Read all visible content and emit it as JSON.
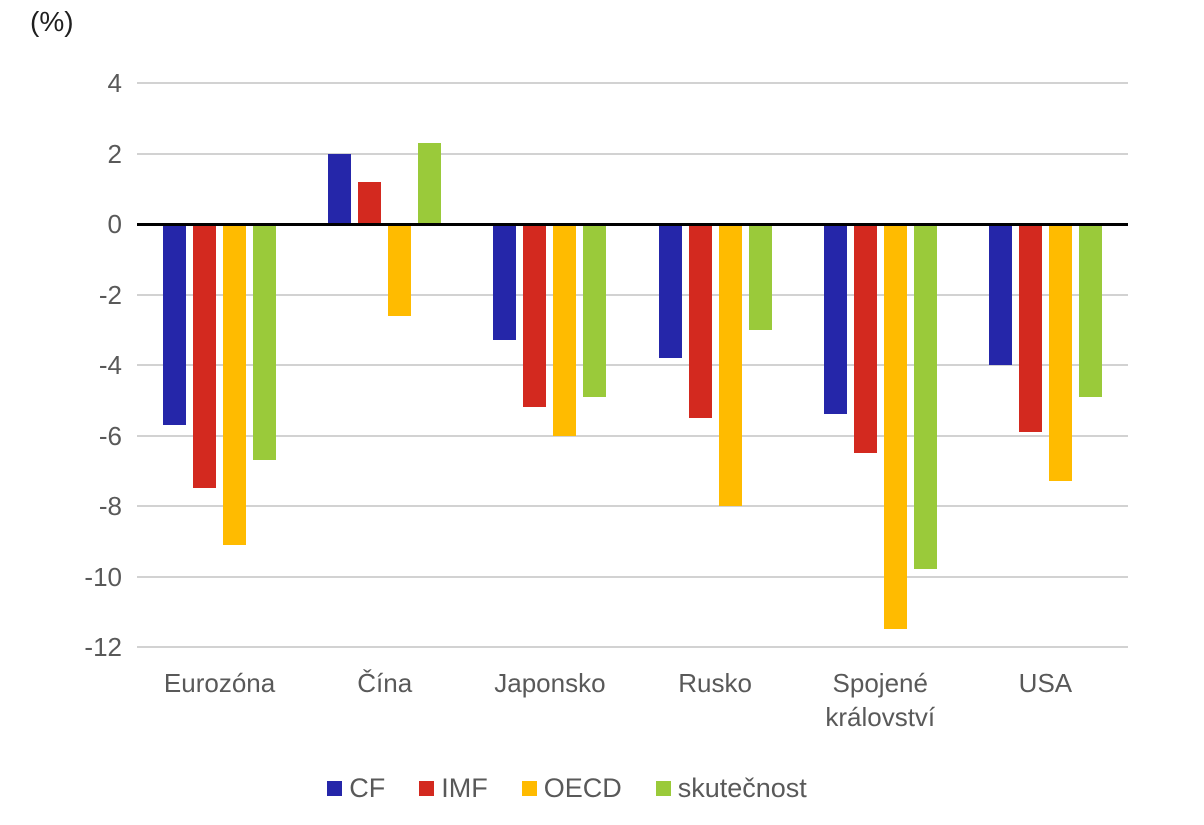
{
  "chart_data": {
    "type": "bar",
    "unit_label": "(%)",
    "categories": [
      "Eurozóna",
      "Čína",
      "Japonsko",
      "Rusko",
      "Spojené království",
      "USA"
    ],
    "series": [
      {
        "name": "CF",
        "color": "#2526A9",
        "values": [
          -5.7,
          2.0,
          -3.3,
          -3.8,
          -5.4,
          -4.0
        ]
      },
      {
        "name": "IMF",
        "color": "#D3291F",
        "values": [
          -7.5,
          1.2,
          -5.2,
          -5.5,
          -6.5,
          -5.9
        ]
      },
      {
        "name": "OECD",
        "color": "#FFBB00",
        "values": [
          -9.1,
          -2.6,
          -6.0,
          -8.0,
          -11.5,
          -7.3
        ]
      },
      {
        "name": "skutečnost",
        "color": "#9ACA3A",
        "values": [
          -6.7,
          2.3,
          -4.9,
          -3.0,
          -9.8,
          -4.9
        ]
      }
    ],
    "yticks": [
      4,
      2,
      0,
      -2,
      -4,
      -6,
      -8,
      -10,
      -12
    ],
    "ylim": [
      -12,
      4
    ],
    "grid": true,
    "legend_position": "bottom",
    "colors": {
      "grid_line": "#d2d2d2",
      "zero_line": "#000000",
      "axis_text": "#595959"
    }
  }
}
